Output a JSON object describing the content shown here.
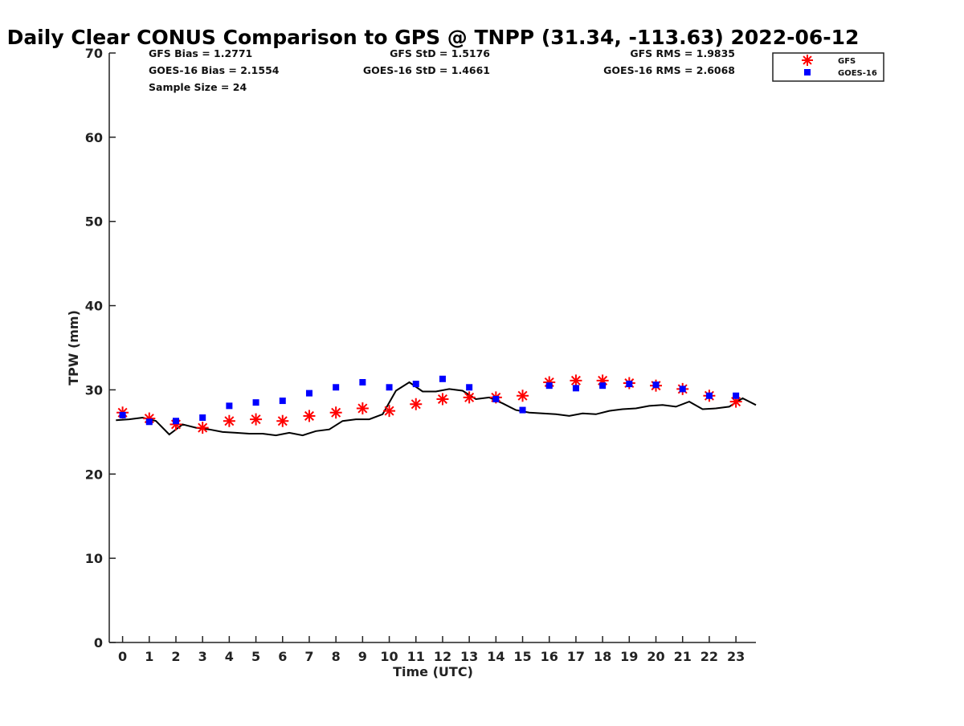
{
  "chart_data": {
    "type": "scatter",
    "title": "Daily Clear CONUS Comparison to GPS @ TNPP (31.34, -113.63) 2022-06-12",
    "xlabel": "Time (UTC)",
    "ylabel": "TPW (mm)",
    "xlim": [
      -0.5,
      23.75
    ],
    "ylim": [
      0,
      70
    ],
    "x_ticks": [
      "0",
      "1",
      "2",
      "3",
      "4",
      "5",
      "6",
      "7",
      "8",
      "9",
      "10",
      "11",
      "12",
      "13",
      "14",
      "15",
      "16",
      "17",
      "18",
      "19",
      "20",
      "21",
      "22",
      "23"
    ],
    "y_ticks": [
      "0",
      "10",
      "20",
      "30",
      "40",
      "50",
      "60",
      "70"
    ],
    "grid": false,
    "legend_position": "top-right",
    "stats": {
      "gfs_bias": "GFS Bias = 1.2771",
      "goes_bias": "GOES-16 Bias = 2.1554",
      "sample_size": "Sample Size = 24",
      "gfs_std": "GFS StD = 1.5176",
      "goes_std": "GOES-16 StD = 1.4661",
      "gfs_rms": "GFS RMS = 1.9835",
      "goes_rms": "GOES-16 RMS = 2.6068"
    },
    "series": [
      {
        "name": "GFS",
        "marker": "asterisk",
        "color": "#ff0000",
        "x": [
          0,
          1,
          2,
          3,
          4,
          5,
          6,
          7,
          8,
          9,
          10,
          11,
          12,
          13,
          14,
          15,
          16,
          17,
          18,
          19,
          20,
          21,
          22,
          23
        ],
        "y": [
          27.3,
          26.6,
          25.9,
          25.5,
          26.3,
          26.5,
          26.3,
          26.9,
          27.3,
          27.8,
          27.5,
          28.3,
          28.9,
          29.1,
          29.1,
          29.3,
          30.9,
          31.1,
          31.1,
          30.8,
          30.5,
          30.1,
          29.3,
          28.6
        ]
      },
      {
        "name": "GOES-16",
        "marker": "square",
        "color": "#0000ff",
        "x": [
          0,
          1,
          2,
          3,
          4,
          5,
          6,
          7,
          8,
          9,
          10,
          11,
          12,
          13,
          14,
          15,
          16,
          17,
          18,
          19,
          20,
          21,
          22,
          23
        ],
        "y": [
          27.0,
          26.2,
          26.3,
          26.7,
          28.1,
          28.5,
          28.7,
          29.6,
          30.3,
          30.9,
          30.3,
          30.7,
          31.3,
          30.3,
          28.9,
          27.6,
          30.5,
          30.2,
          30.5,
          30.7,
          30.6,
          30.1,
          29.3,
          29.3
        ]
      },
      {
        "marker": "line",
        "color": "#000000",
        "x": [
          -0.25,
          0.25,
          0.75,
          1.25,
          1.75,
          2.25,
          2.75,
          3.25,
          3.75,
          4.25,
          4.75,
          5.25,
          5.75,
          6.25,
          6.75,
          7.25,
          7.75,
          8.25,
          8.75,
          9.25,
          9.75,
          10.25,
          10.75,
          11.25,
          11.75,
          12.25,
          12.75,
          13.25,
          13.75,
          14.25,
          14.75,
          15.25,
          15.75,
          16.25,
          16.75,
          17.25,
          17.75,
          18.25,
          18.75,
          19.25,
          19.75,
          20.25,
          20.75,
          21.25,
          21.75,
          22.25,
          22.75,
          23.25,
          23.75
        ],
        "y": [
          26.4,
          26.5,
          26.7,
          26.3,
          24.7,
          25.9,
          25.5,
          25.3,
          25.0,
          24.9,
          24.8,
          24.8,
          24.6,
          24.9,
          24.6,
          25.1,
          25.3,
          26.3,
          26.5,
          26.5,
          27.1,
          29.9,
          30.9,
          29.8,
          29.8,
          30.1,
          29.9,
          28.9,
          29.1,
          28.4,
          27.6,
          27.3,
          27.2,
          27.1,
          26.9,
          27.2,
          27.1,
          27.5,
          27.7,
          27.8,
          28.1,
          28.2,
          28.0,
          28.6,
          27.7,
          27.8,
          28.0,
          29.0,
          28.2
        ]
      }
    ]
  }
}
